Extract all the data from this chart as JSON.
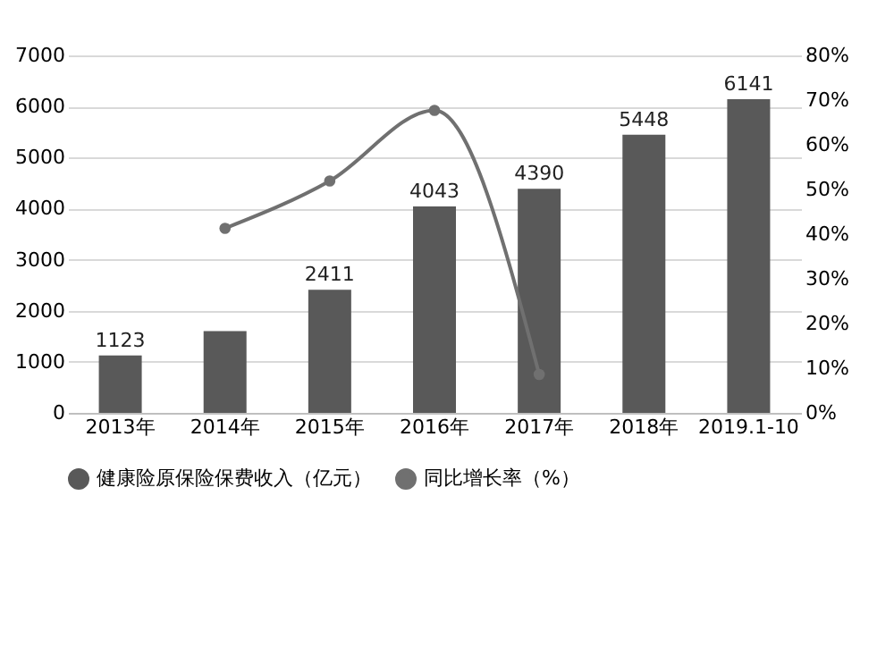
{
  "chart_data": {
    "type": "bar",
    "categories": [
      "2013年",
      "2014年",
      "2015年",
      "2016年",
      "2017年",
      "2018年",
      "2019.1-10"
    ],
    "series": [
      {
        "name": "健康险原保险保费收入（亿元）",
        "color": "#595959",
        "values": [
          1123,
          1600,
          2411,
          4043,
          4390,
          5448,
          6141
        ],
        "value_labels": [
          "1123",
          null,
          "2411",
          "4043",
          "4390",
          "5448",
          "6141"
        ]
      },
      {
        "name": "同比增长率（%）",
        "type": "line",
        "axis": "y2",
        "color": "#707070",
        "marker": "circle",
        "values": [
          null,
          41.3,
          51.9,
          67.7,
          8.6,
          null,
          null
        ]
      }
    ],
    "ylim": [
      0,
      7000
    ],
    "yticks": [
      0,
      1000,
      2000,
      3000,
      4000,
      5000,
      6000,
      7000
    ],
    "y2lim": [
      0,
      80
    ],
    "y2ticks": [
      {
        "value": 0,
        "label": "0%"
      },
      {
        "value": 10,
        "label": "10%"
      },
      {
        "value": 20,
        "label": "20%"
      },
      {
        "value": 30,
        "label": "30%"
      },
      {
        "value": 40,
        "label": "40%"
      },
      {
        "value": 50,
        "label": "50%"
      },
      {
        "value": 60,
        "label": "60%"
      },
      {
        "value": 70,
        "label": "70%"
      },
      {
        "value": 80,
        "label": "80%"
      }
    ],
    "grid": "y",
    "legend": "bottom"
  }
}
